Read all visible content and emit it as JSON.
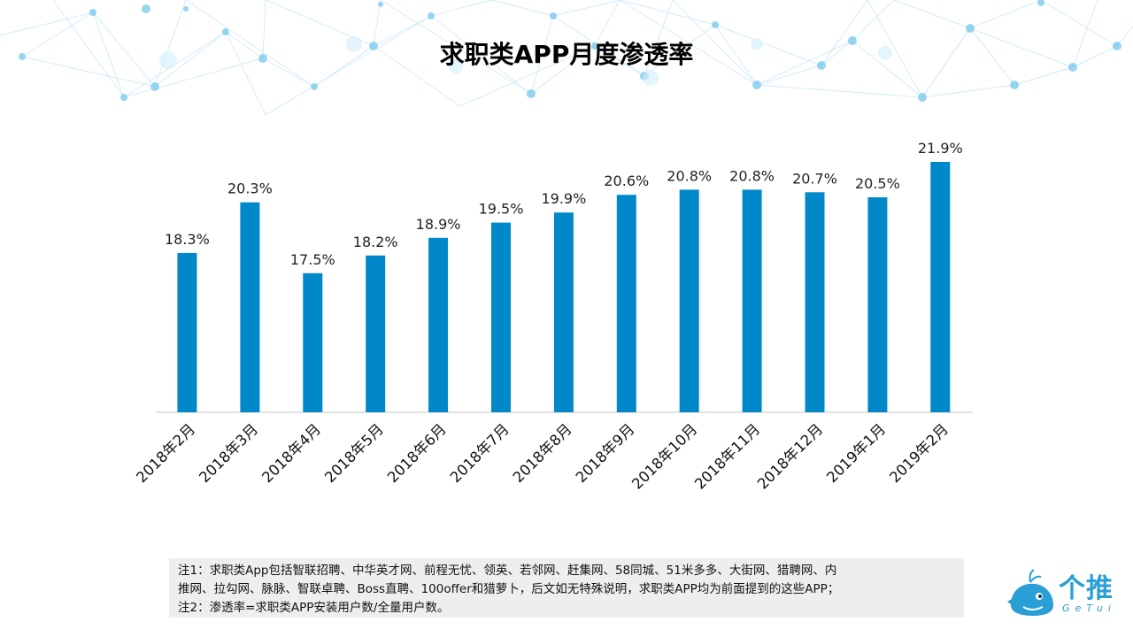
{
  "title": "求职类APP月度渗透率",
  "colors": {
    "bar": "#0088c8",
    "axis": "#d9d9d9",
    "network": "#8fd3f0"
  },
  "chart_data": {
    "type": "bar",
    "title": "求职类APP月度渗透率",
    "categories": [
      "2018年2月",
      "2018年3月",
      "2018年4月",
      "2018年5月",
      "2018年6月",
      "2018年7月",
      "2018年8月",
      "2018年9月",
      "2018年10月",
      "2018年11月",
      "2018年12月",
      "2019年1月",
      "2019年2月"
    ],
    "values": [
      18.3,
      20.3,
      17.5,
      18.2,
      18.9,
      19.5,
      19.9,
      20.6,
      20.8,
      20.8,
      20.7,
      20.5,
      21.9
    ],
    "data_labels": [
      "18.3%",
      "20.3%",
      "17.5%",
      "18.2%",
      "18.9%",
      "19.5%",
      "19.9%",
      "20.6%",
      "20.8%",
      "20.8%",
      "20.7%",
      "20.5%",
      "21.9%"
    ],
    "unit": "%",
    "ylim": [
      12,
      22.5
    ],
    "grid": false,
    "legend": "none",
    "xlabel": "",
    "ylabel": ""
  },
  "notes": [
    "注1：求职类App包括智联招聘、中华英才网、前程无忧、领英、若邻网、赶集网、58同城、51米多多、大街网、猎聘网、内",
    "推网、拉勾网、脉脉、智联卓聘、Boss直聘、100offer和猎萝卜，后文如无特殊说明，求职类APP均为前面提到的这些APP；",
    "注2：渗透率=求职类APP安装用户数/全量用户数。"
  ],
  "logo": {
    "name": "个推",
    "sub": "GeTui",
    "icon": "whale-logo-icon"
  }
}
